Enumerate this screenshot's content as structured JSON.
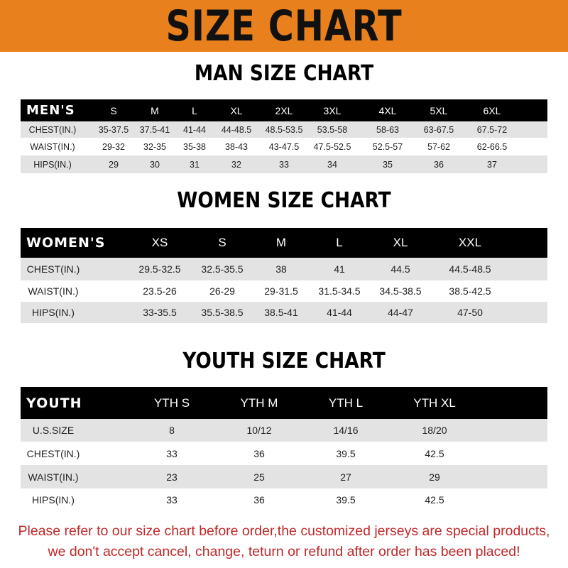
{
  "banner": {
    "title": "SIZE CHART",
    "color": "#e8801e"
  },
  "men": {
    "title": "MAN SIZE CHART",
    "header": [
      "MEN'S",
      "S",
      "M",
      "L",
      "XL",
      "2XL",
      "3XL",
      "4XL",
      "5XL",
      "6XL"
    ],
    "rows": [
      [
        "CHEST(IN.)",
        "35-37.5",
        "37.5-41",
        "41-44",
        "44-48.5",
        "48.5-53.5",
        "53.5-58",
        "58-63",
        "63-67.5",
        "67.5-72"
      ],
      [
        "WAIST(IN.)",
        "29-32",
        "32-35",
        "35-38",
        "38-43",
        "43-47.5",
        "47.5-52.5",
        "52.5-57",
        "57-62",
        "62-66.5"
      ],
      [
        "HIPS(IN.)",
        "29",
        "30",
        "31",
        "32",
        "33",
        "34",
        "35",
        "36",
        "37"
      ]
    ]
  },
  "women": {
    "title": "WOMEN SIZE CHART",
    "header": [
      "WOMEN'S",
      "XS",
      "S",
      "M",
      "L",
      "XL",
      "XXL"
    ],
    "rows": [
      [
        "CHEST(IN.)",
        "29.5-32.5",
        "32.5-35.5",
        "38",
        "41",
        "44.5",
        "44.5-48.5"
      ],
      [
        "WAIST(IN.)",
        "23.5-26",
        "26-29",
        "29-31.5",
        "31.5-34.5",
        "34.5-38.5",
        "38.5-42.5"
      ],
      [
        "HIPS(IN.)",
        "33-35.5",
        "35.5-38.5",
        "38.5-41",
        "41-44",
        "44-47",
        "47-50"
      ]
    ]
  },
  "youth": {
    "title": "YOUTH SIZE CHART",
    "header": [
      "YOUTH",
      "YTH S",
      "YTH M",
      "YTH L",
      "YTH XL"
    ],
    "rows": [
      [
        "U.S.SIZE",
        "8",
        "10/12",
        "14/16",
        "18/20"
      ],
      [
        "CHEST(IN.)",
        "33",
        "36",
        "39.5",
        "42.5"
      ],
      [
        "WAIST(IN.)",
        "23",
        "25",
        "27",
        "29"
      ],
      [
        "HIPS(IN.)",
        "33",
        "36",
        "39.5",
        "42.5"
      ]
    ]
  },
  "footer": {
    "line1": "Please refer to our size chart before order,the customized jerseys are special products,",
    "line2": "we don't accept cancel, change, teturn or refund after order has been placed!",
    "color": "#c0282a"
  }
}
